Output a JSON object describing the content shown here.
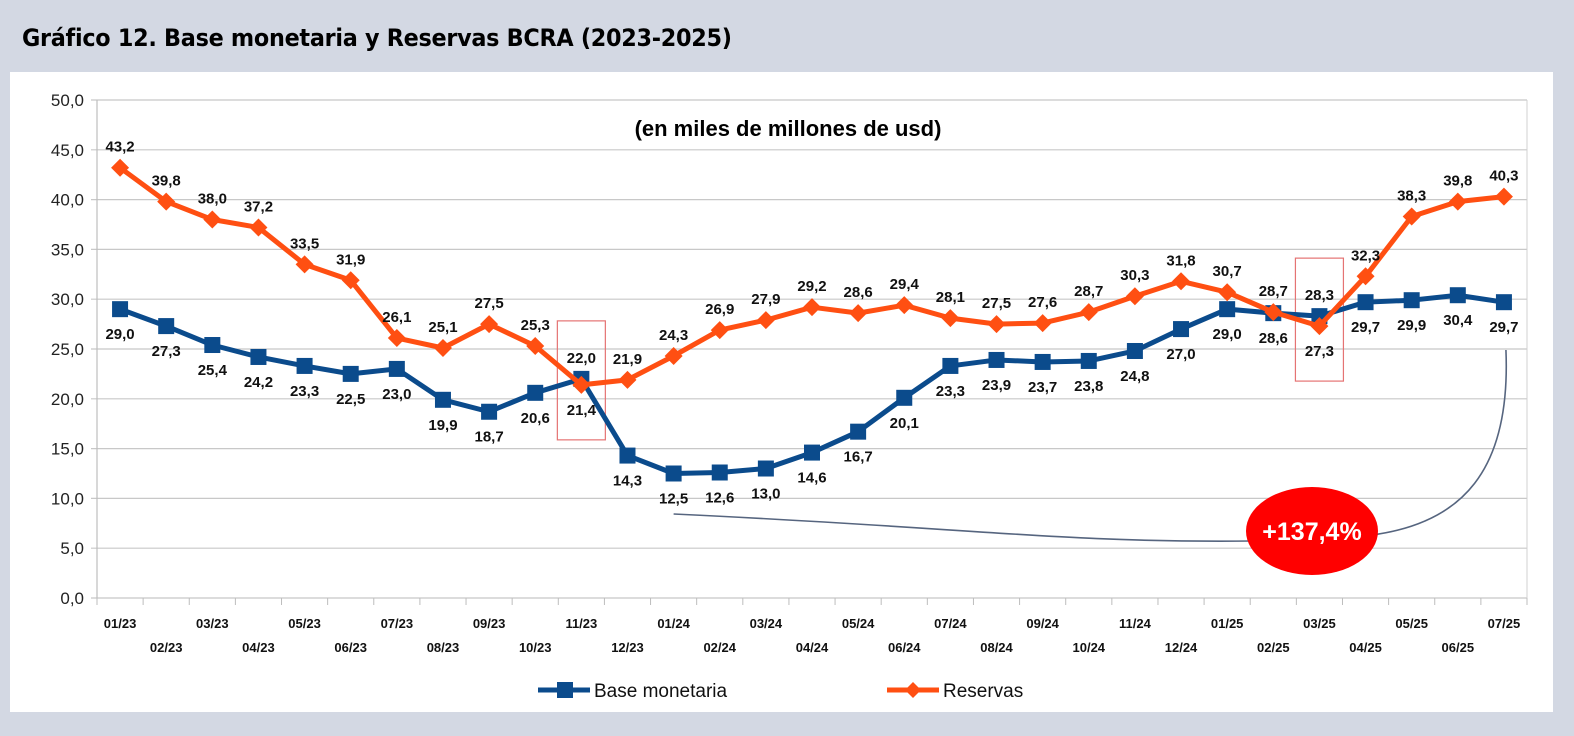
{
  "title": "Gráfico 12. Base monetaria y Reservas BCRA (2023-2025)",
  "chart_data": {
    "type": "line",
    "title": "Gráfico 12. Base monetaria y Reservas BCRA (2023-2025)",
    "subtitle": "(en miles de millones de usd)",
    "xlabel": "",
    "ylabel": "",
    "ylim": [
      0,
      50
    ],
    "ytick_step": 5,
    "ytick_labels": [
      "0,0",
      "5,0",
      "10,0",
      "15,0",
      "20,0",
      "25,0",
      "30,0",
      "35,0",
      "40,0",
      "45,0",
      "50,0"
    ],
    "grid": true,
    "legend_position": "bottom",
    "categories": [
      "01/23",
      "02/23",
      "03/23",
      "04/23",
      "05/23",
      "06/23",
      "07/23",
      "08/23",
      "09/23",
      "10/23",
      "11/23",
      "12/23",
      "01/24",
      "02/24",
      "03/24",
      "04/24",
      "05/24",
      "06/24",
      "07/24",
      "08/24",
      "09/24",
      "10/24",
      "11/24",
      "12/24",
      "01/25",
      "02/25",
      "03/25",
      "04/25",
      "05/25",
      "06/25",
      "07/25"
    ],
    "series": [
      {
        "name": "Base monetaria",
        "color": "#0b4b8c",
        "marker": "square",
        "values": [
          29.0,
          27.3,
          25.4,
          24.2,
          23.3,
          22.5,
          23.0,
          19.9,
          18.7,
          20.6,
          22.0,
          14.3,
          12.5,
          12.6,
          13.0,
          14.6,
          16.7,
          20.1,
          23.3,
          23.9,
          23.7,
          23.8,
          24.8,
          27.0,
          29.0,
          28.6,
          28.3,
          29.7,
          29.9,
          30.4,
          29.7
        ],
        "labels": [
          "29,0",
          "27,3",
          "25,4",
          "24,2",
          "23,3",
          "22,5",
          "23,0",
          "19,9",
          "18,7",
          "20,6",
          "22,0",
          "14,3",
          "12,5",
          "12,6",
          "13,0",
          "14,6",
          "16,7",
          "20,1",
          "23,3",
          "23,9",
          "23,7",
          "23,8",
          "24,8",
          "27,0",
          "29,0",
          "28,6",
          "28,3",
          "29,7",
          "29,9",
          "30,4",
          "29,7"
        ]
      },
      {
        "name": "Reservas",
        "color": "#ff4f12",
        "marker": "diamond",
        "values": [
          43.2,
          39.8,
          38.0,
          37.2,
          33.5,
          31.9,
          26.1,
          25.1,
          27.5,
          25.3,
          21.4,
          21.9,
          24.3,
          26.9,
          27.9,
          29.2,
          28.6,
          29.4,
          28.1,
          27.5,
          27.6,
          28.7,
          30.3,
          31.8,
          30.7,
          28.7,
          27.3,
          32.3,
          38.3,
          39.8,
          40.3
        ],
        "labels": [
          "43,2",
          "39,8",
          "38,0",
          "37,2",
          "33,5",
          "31,9",
          "26,1",
          "25,1",
          "27,5",
          "25,3",
          "21,4",
          "21,9",
          "24,3",
          "26,9",
          "27,9",
          "29,2",
          "28,6",
          "29,4",
          "28,1",
          "27,5",
          "27,6",
          "28,7",
          "30,3",
          "31,8",
          "30,7",
          "28,7",
          "27,3",
          "32,3",
          "38,3",
          "39,8",
          "40,3"
        ]
      }
    ],
    "annotations": [
      {
        "type": "highlight-box",
        "category": "11/23"
      },
      {
        "type": "highlight-box",
        "category": "03/25"
      },
      {
        "type": "badge",
        "text": "+137,4%",
        "color": "#ff0000",
        "from_category": "01/24",
        "to_category": "07/25",
        "series": "Base monetaria"
      }
    ]
  }
}
